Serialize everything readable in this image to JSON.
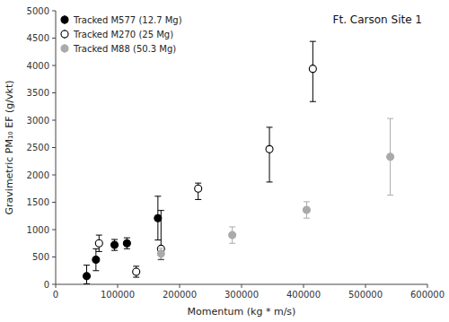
{
  "chart_data": {
    "type": "scatter",
    "title": "Ft. Carson Site 1",
    "xlabel": "Momentum (kg * m/s)",
    "ylabel": "Gravimetric PM₁₀ EF (g/vkt)",
    "xlim": [
      0,
      600000
    ],
    "ylim": [
      0,
      5000
    ],
    "xticks": [
      0,
      100000,
      200000,
      300000,
      400000,
      500000,
      600000
    ],
    "yticks": [
      0,
      500,
      1000,
      1500,
      2000,
      2500,
      3000,
      3500,
      4000,
      4500,
      5000
    ],
    "grid": false,
    "legend": "upper left",
    "series": [
      {
        "name": "Tracked M577 (12.7 Mg)",
        "color": "black",
        "marker": "circle",
        "x": [
          50000,
          65000,
          95000,
          115000,
          165000
        ],
        "values": [
          150,
          450,
          720,
          750,
          1210
        ],
        "yerr_lo": [
          140,
          200,
          100,
          100,
          400
        ],
        "yerr_hi": [
          200,
          200,
          100,
          100,
          400
        ]
      },
      {
        "name": "Tracked M270 (25 Mg)",
        "color": "black",
        "marker": "open-circle",
        "x": [
          70000,
          130000,
          170000,
          230000,
          345000,
          415000
        ],
        "values": [
          750,
          230,
          650,
          1750,
          2470,
          3940
        ],
        "yerr_lo": [
          150,
          100,
          200,
          200,
          600,
          600
        ],
        "yerr_hi": [
          150,
          100,
          700,
          100,
          400,
          500
        ]
      },
      {
        "name": "Tracked M88 (50.3 Mg)",
        "color": "#aaaaaa",
        "marker": "circle",
        "x": [
          170000,
          285000,
          405000,
          540000
        ],
        "values": [
          560,
          900,
          1360,
          2330
        ],
        "yerr_lo": [
          100,
          150,
          150,
          700
        ],
        "yerr_hi": [
          100,
          150,
          150,
          700
        ]
      }
    ]
  }
}
